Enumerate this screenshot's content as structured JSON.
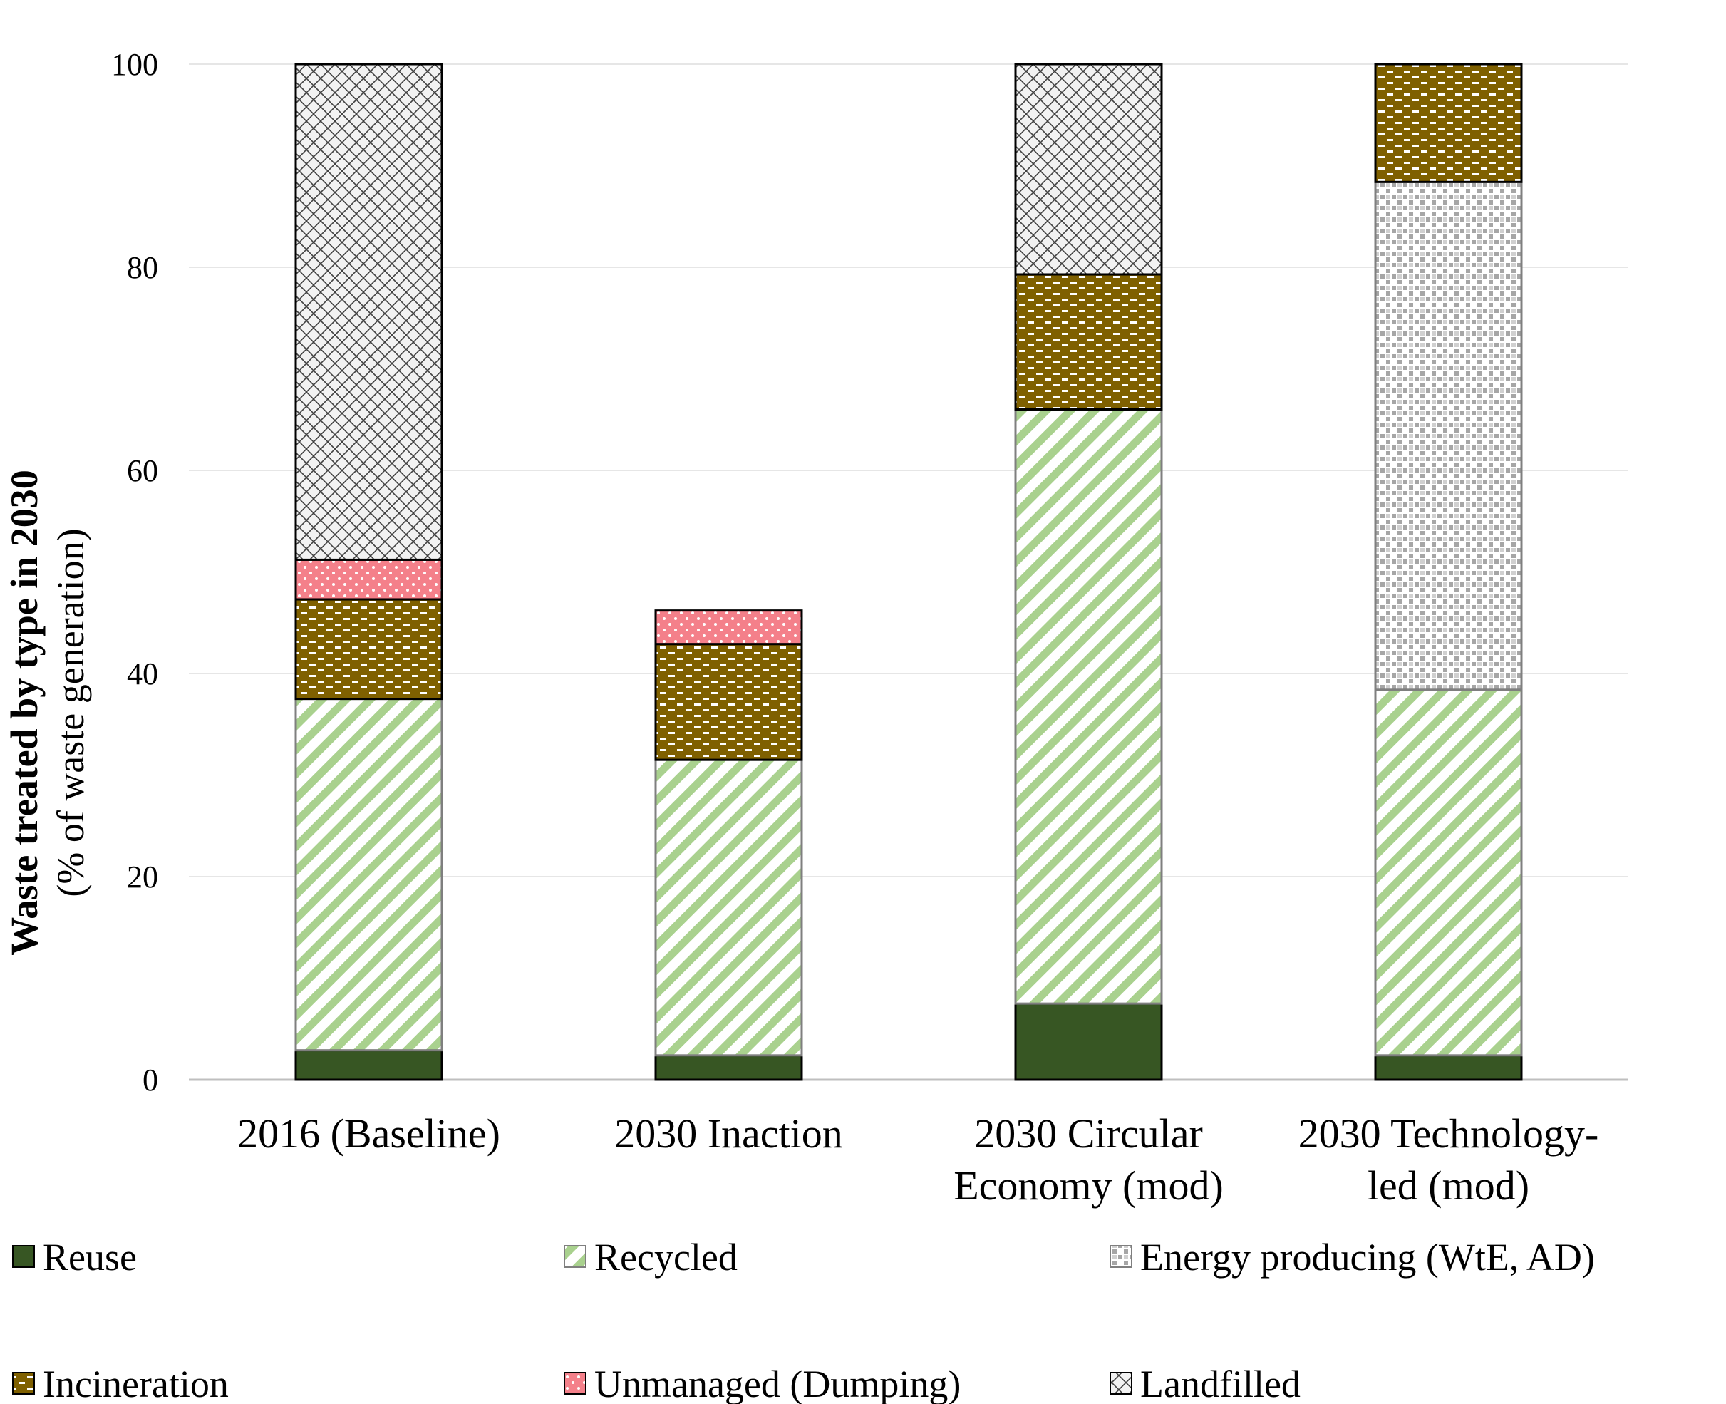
{
  "chart_data": {
    "type": "bar",
    "stacked": true,
    "ylabel": "Waste treated by type in 2030",
    "ylabel_sub": "(% of waste generation)",
    "xlabel": "",
    "ylim": [
      0,
      100
    ],
    "yticks": [
      "0",
      "20",
      "40",
      "60",
      "80",
      "100"
    ],
    "grid": true,
    "legend_position": "bottom",
    "categories": [
      [
        "2016 (Baseline)"
      ],
      [
        "2030 Inaction"
      ],
      [
        "2030 Circular",
        "Economy (mod)"
      ],
      [
        "2030 Technology-",
        "led (mod)"
      ]
    ],
    "series": [
      {
        "name": "Reuse",
        "values": [
          2.9,
          2.4,
          7.5,
          2.4
        ],
        "color": "#375623",
        "pattern": "solid"
      },
      {
        "name": "Recycled",
        "values": [
          34.6,
          29.1,
          58.5,
          36.0
        ],
        "color": "#a9d18e",
        "pattern": "diagonal-stripes"
      },
      {
        "name": "Energy producing (WtE, AD)",
        "values": [
          0,
          0,
          0,
          50.0
        ],
        "color": "#a6a6a6",
        "pattern": "small-grid"
      },
      {
        "name": "Incineration",
        "values": [
          9.8,
          11.4,
          13.3,
          11.6
        ],
        "color": "#7f6000",
        "pattern": "dashed-horizontal"
      },
      {
        "name": "Unmanaged (Dumping)",
        "values": [
          3.9,
          3.3,
          0,
          0
        ],
        "color": "#f4808a",
        "pattern": "dotted"
      },
      {
        "name": "Landfilled",
        "values": [
          48.8,
          0,
          20.7,
          0
        ],
        "color": "#f2f2f2",
        "pattern": "crosshatch"
      }
    ]
  }
}
